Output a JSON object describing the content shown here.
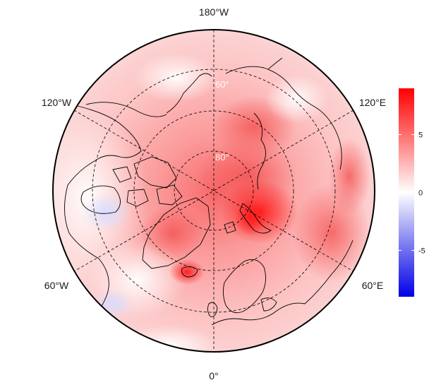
{
  "map": {
    "projection": "north-polar-stereographic",
    "longitude_labels": {
      "top": "180°W",
      "upper_left": "120°W",
      "upper_right": "120°E",
      "lower_left": "60°W",
      "lower_right": "60°E",
      "bottom": "0°"
    },
    "latitude_labels": [
      "60°",
      "80°"
    ],
    "colors": {
      "max": "#ff0000",
      "mid": "#ffffff",
      "min": "#0000e6",
      "coast": "#000000",
      "grid": "#000000"
    }
  },
  "colorbar": {
    "min": -9,
    "max": 9,
    "ticks": [
      {
        "value": 5,
        "label": "5"
      },
      {
        "value": 0,
        "label": "0"
      },
      {
        "value": -5,
        "label": "-5"
      }
    ]
  }
}
